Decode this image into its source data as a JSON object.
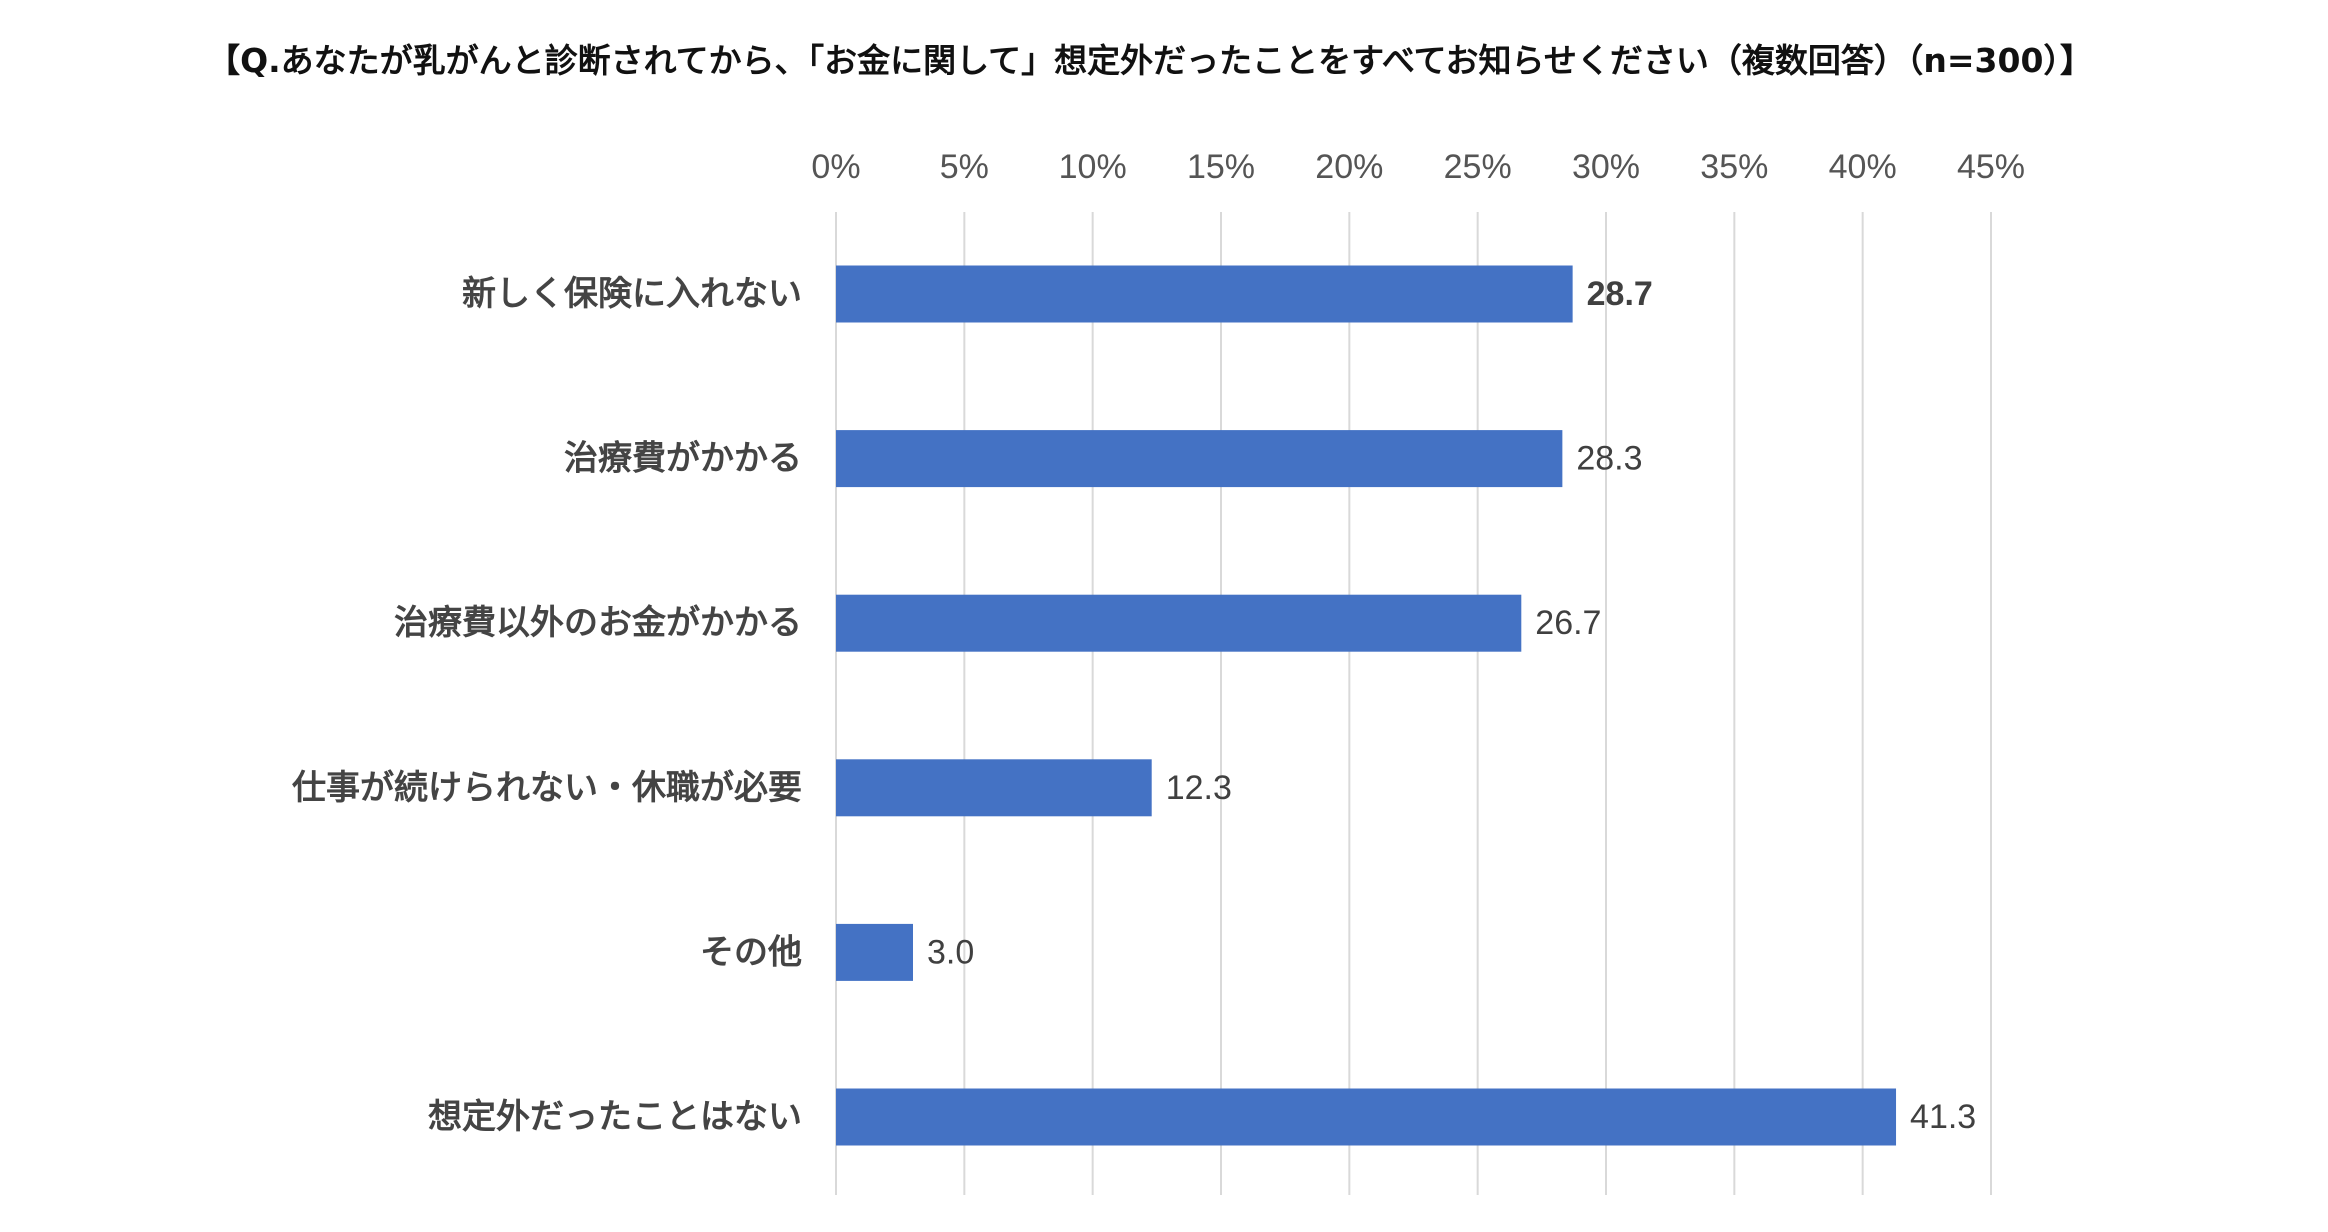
{
  "chart_data": {
    "type": "bar",
    "orientation": "horizontal",
    "title": "【Q.あなたが乳がんと診断されてから、「お金に関して」想定外だったことをすべてお知らせください（複数回答）（n=300）】",
    "categories": [
      "新しく保険に入れない",
      "治療費がかかる",
      "治療費以外のお金がかかる",
      "仕事が続けられない・休職が必要",
      "その他",
      "想定外だったことはない"
    ],
    "values": [
      28.7,
      28.3,
      26.7,
      12.3,
      3.0,
      41.3
    ],
    "value_labels": [
      "28.7",
      "28.3",
      "26.7",
      "12.3",
      "3.0",
      "41.3"
    ],
    "highlight_index": 0,
    "xlim": [
      0,
      45
    ],
    "x_ticks": [
      "0%",
      "5%",
      "10%",
      "15%",
      "20%",
      "25%",
      "30%",
      "35%",
      "40%",
      "45%"
    ],
    "x_axis_position": "top",
    "grid": true,
    "legend": "none",
    "bar_color": "#4472C4",
    "highlight_label_color": "#FF0000",
    "label_color": "#404040",
    "grid_color": "#D9D9D9"
  }
}
